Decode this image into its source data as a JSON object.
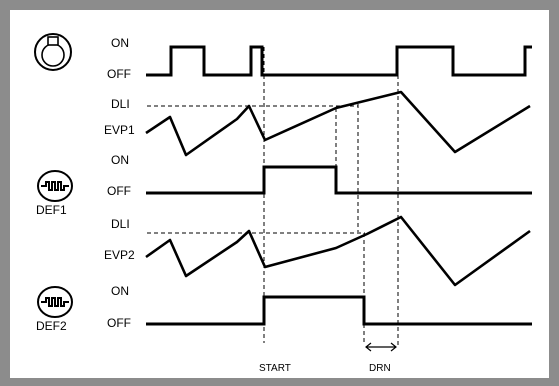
{
  "rows": {
    "compressor": {
      "on": "ON",
      "off": "OFF"
    },
    "evp1": {
      "dli": "DLI",
      "name": "EVP1"
    },
    "def1": {
      "on": "ON",
      "off": "OFF",
      "caption": "DEF1"
    },
    "evp2": {
      "dli": "DLI",
      "name": "EVP2"
    },
    "def2": {
      "on": "ON",
      "off": "OFF",
      "caption": "DEF2"
    }
  },
  "markers": {
    "start": "START",
    "drn": "DRN"
  },
  "icons": {
    "compressor": "compressor-icon",
    "defrost1": "defrost-heater-icon",
    "defrost2": "defrost-heater-icon"
  },
  "colors": {
    "frame": "#8c8c8c",
    "line": "#000000",
    "background": "#ffffff"
  }
}
